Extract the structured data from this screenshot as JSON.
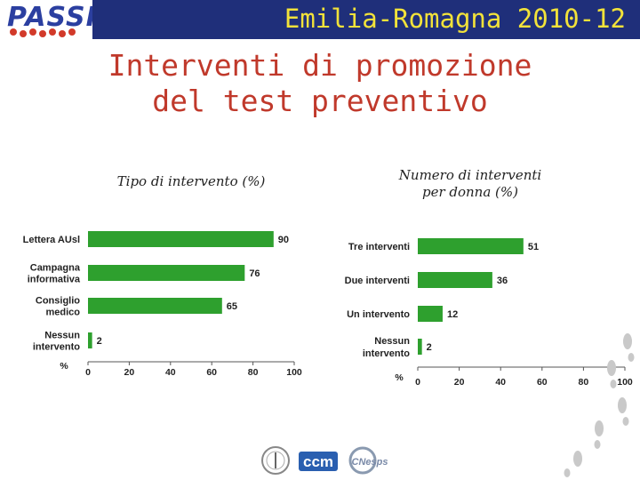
{
  "header": {
    "logo_text": "PASSI",
    "title": "Emilia-Romagna 2010-12"
  },
  "main_title_lines": [
    "Interventi di promozione",
    "del test preventivo"
  ],
  "colors": {
    "bar": "#2ea02e",
    "header_bg": "#1f2f7a",
    "header_text": "#f2e23a",
    "title": "#c0392b"
  },
  "bottom_logos": {
    "ccm_text": "ccm",
    "cnesps_text": "CNesps"
  },
  "chart_data": [
    {
      "type": "bar",
      "orientation": "horizontal",
      "title": "Tipo di intervento (%)",
      "categories": [
        [
          "Lettera AUsl"
        ],
        [
          "Campagna",
          "informativa"
        ],
        [
          "Consiglio",
          "medico"
        ],
        [
          "Nessun",
          "intervento"
        ]
      ],
      "values": [
        90,
        76,
        65,
        2
      ],
      "xlabel": "%",
      "xlim": [
        0,
        100
      ],
      "xticks": [
        0,
        20,
        40,
        60,
        80,
        100
      ],
      "grid": false,
      "legend": "none"
    },
    {
      "type": "bar",
      "orientation": "horizontal",
      "title_lines": [
        "Numero di interventi",
        "per donna (%)"
      ],
      "categories": [
        [
          "Tre interventi"
        ],
        [
          "Due interventi"
        ],
        [
          "Un intervento"
        ],
        [
          "Nessun",
          "intervento"
        ]
      ],
      "values": [
        51,
        36,
        12,
        2
      ],
      "xlabel": "%",
      "xlim": [
        0,
        100
      ],
      "xticks": [
        0,
        20,
        40,
        60,
        80,
        100
      ],
      "grid": false,
      "legend": "none"
    }
  ]
}
